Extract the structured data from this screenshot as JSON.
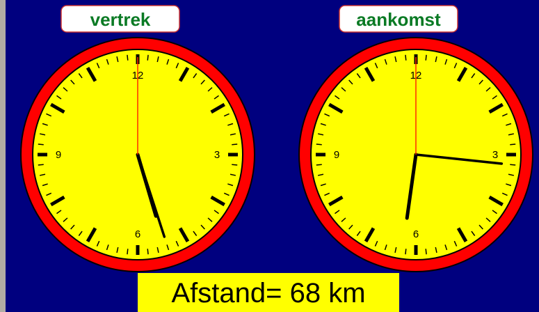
{
  "clocks": [
    {
      "label": "vertrek",
      "hour": 5,
      "minute": 27,
      "second": 0
    },
    {
      "label": "aankomst",
      "hour": 6,
      "minute": 16,
      "second": 0
    }
  ],
  "dial_numbers": [
    "12",
    "3",
    "6",
    "9"
  ],
  "distance": "Afstand= 68 km"
}
